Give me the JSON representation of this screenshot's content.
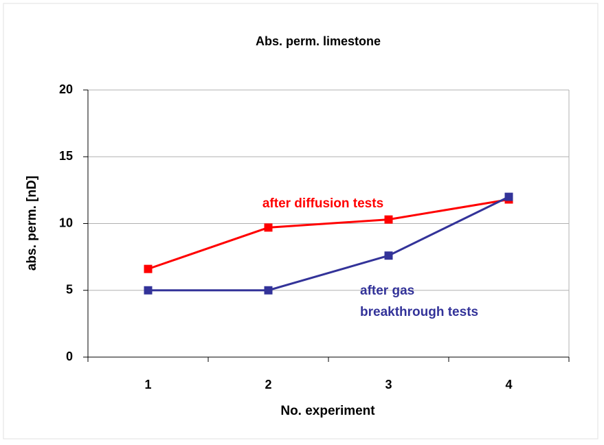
{
  "chart_data": {
    "type": "line",
    "title": "Abs. perm. limestone",
    "x_label": "No. experiment",
    "y_label": "abs. perm. [nD]",
    "categories": [
      "1",
      "2",
      "3",
      "4"
    ],
    "series": [
      {
        "name": "after diffusion tests",
        "color": "#ff0000",
        "values": [
          6.6,
          9.7,
          10.3,
          11.8
        ]
      },
      {
        "name_lines": [
          "after gas",
          "breakthrough tests"
        ],
        "color": "#333399",
        "values": [
          5.0,
          5.0,
          7.6,
          12.0
        ]
      }
    ],
    "ylim": [
      0,
      20
    ],
    "yticks": [
      0,
      5,
      10,
      15,
      20
    ],
    "grid": true
  }
}
